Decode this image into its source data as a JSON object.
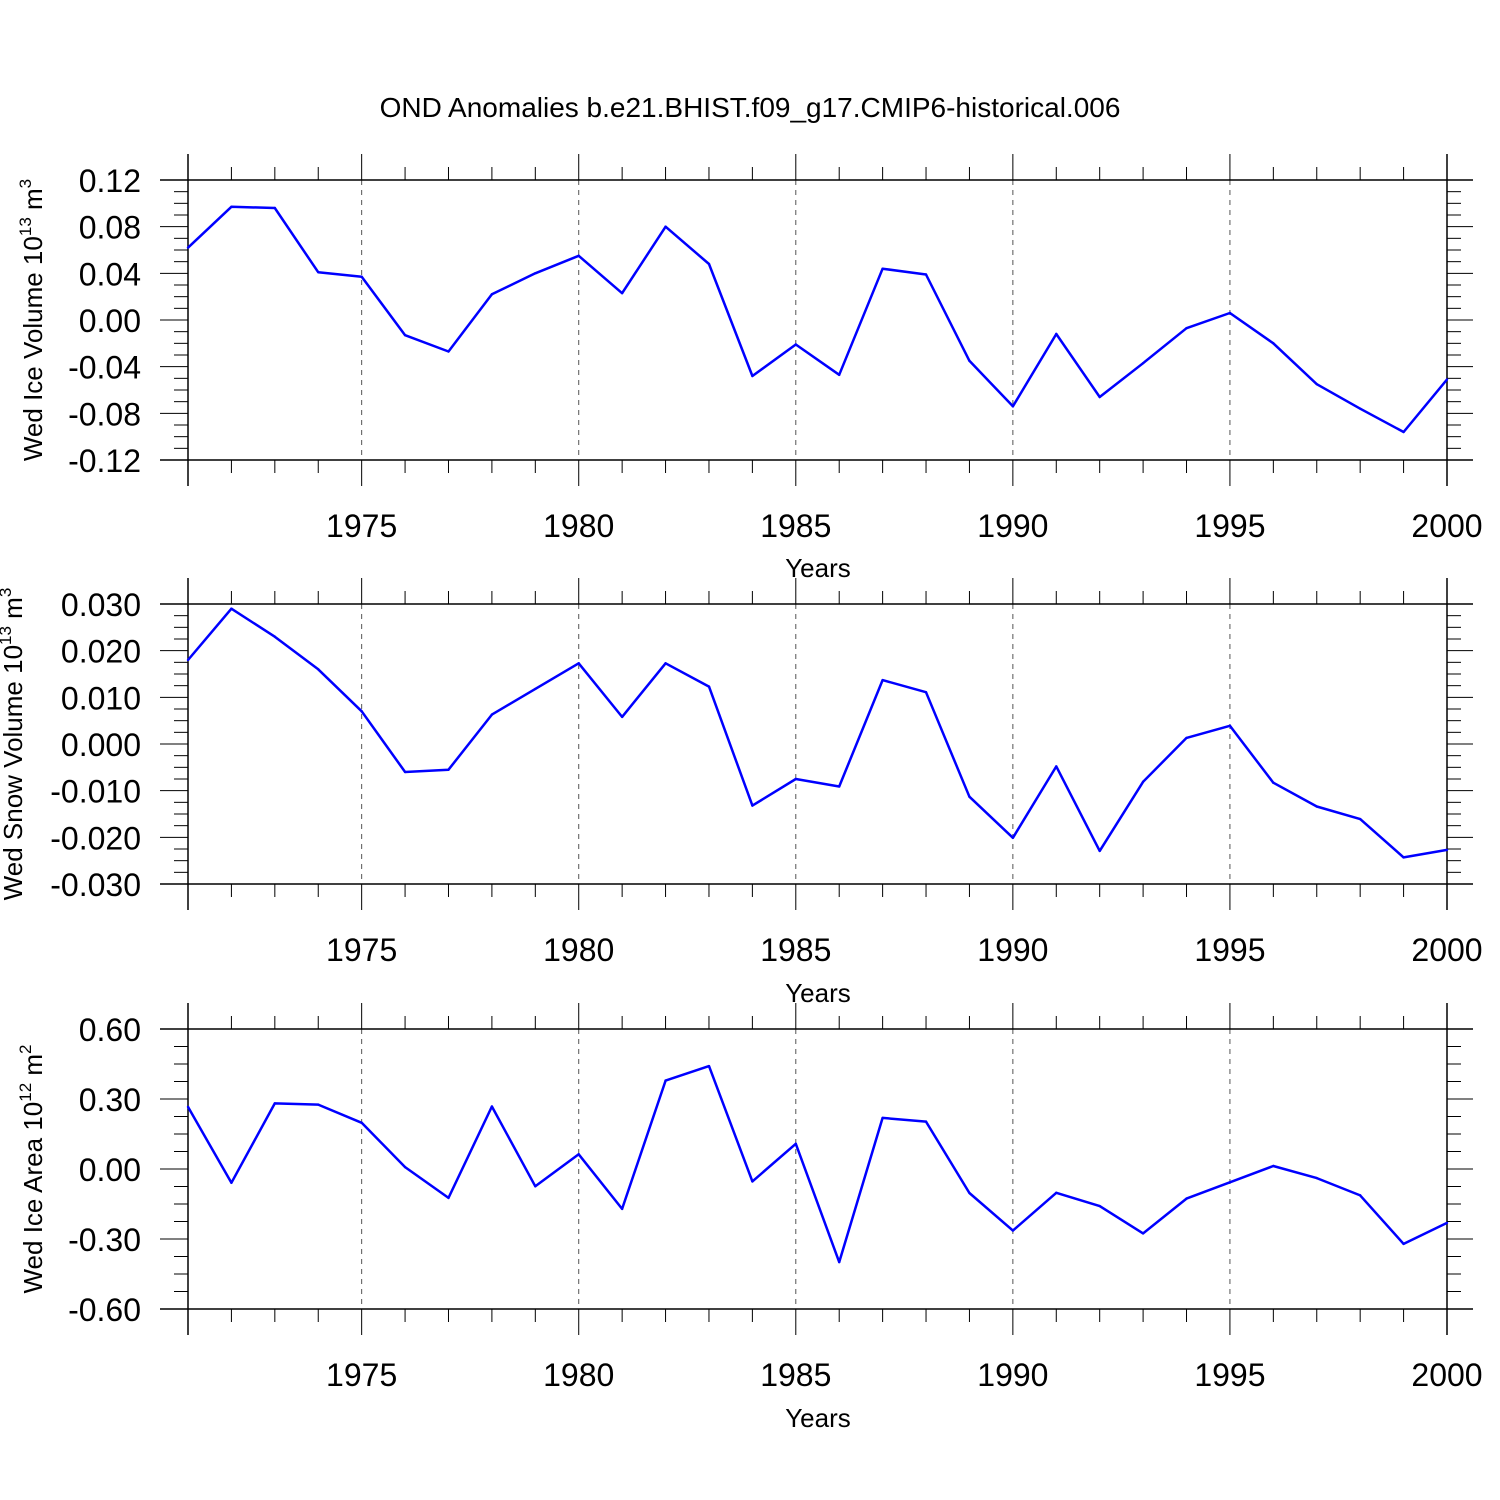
{
  "title": "OND Anomalies b.e21.BHIST.f09_g17.CMIP6-historical.006",
  "colors": {
    "line": "#0000ff",
    "axis": "#000000",
    "grid": "#555555",
    "background": "#ffffff"
  },
  "chart_data": [
    {
      "type": "line",
      "ylabel_main": "Wed Ice Volume 10",
      "ylabel_exp": "13",
      "ylabel_unit": " m",
      "ylabel_unit_exp": "3",
      "xlabel": "Years",
      "xlim": [
        1971,
        2000
      ],
      "ylim": [
        -0.12,
        0.12
      ],
      "yticks": [
        0.12,
        0.08,
        0.04,
        0.0,
        -0.04,
        -0.08,
        -0.12
      ],
      "ytick_labels": [
        "0.12",
        "0.08",
        "0.04",
        "0.00",
        "-0.04",
        "-0.08",
        "-0.12"
      ],
      "xticks": [
        1975,
        1980,
        1985,
        1990,
        1995,
        2000
      ],
      "xtick_labels": [
        "1975",
        "1980",
        "1985",
        "1990",
        "1995",
        "2000"
      ],
      "grid": "vertical dashed at major x ticks",
      "series": [
        {
          "x": [
            1971,
            1972,
            1973,
            1974,
            1975,
            1976,
            1977,
            1978,
            1979,
            1980,
            1981,
            1982,
            1983,
            1984,
            1985,
            1986,
            1987,
            1988,
            1989,
            1990,
            1991,
            1992,
            1993,
            1994,
            1995,
            1996,
            1997,
            1998,
            1999,
            2000
          ],
          "values": [
            0.062,
            0.097,
            0.096,
            0.041,
            0.037,
            -0.013,
            -0.027,
            0.022,
            0.04,
            0.055,
            0.023,
            0.08,
            0.048,
            -0.048,
            -0.021,
            -0.047,
            0.044,
            0.039,
            -0.035,
            -0.074,
            -0.012,
            -0.066,
            -0.037,
            -0.007,
            0.006,
            -0.02,
            -0.055,
            -0.076,
            -0.096,
            -0.051
          ]
        }
      ]
    },
    {
      "type": "line",
      "ylabel_main": "Wed Snow Volume 10",
      "ylabel_exp": "13",
      "ylabel_unit": " m",
      "ylabel_unit_exp": "3",
      "xlabel": "Years",
      "xlim": [
        1971,
        2000
      ],
      "ylim": [
        -0.03,
        0.03
      ],
      "yticks": [
        0.03,
        0.02,
        0.01,
        0.0,
        -0.01,
        -0.02,
        -0.03
      ],
      "ytick_labels": [
        "0.030",
        "0.020",
        "0.010",
        "0.000",
        "-0.010",
        "-0.020",
        "-0.030"
      ],
      "xticks": [
        1975,
        1980,
        1985,
        1990,
        1995,
        2000
      ],
      "xtick_labels": [
        "1975",
        "1980",
        "1985",
        "1990",
        "1995",
        "2000"
      ],
      "grid": "vertical dashed at major x ticks",
      "series": [
        {
          "x": [
            1971,
            1972,
            1973,
            1974,
            1975,
            1976,
            1977,
            1978,
            1979,
            1980,
            1981,
            1982,
            1983,
            1984,
            1985,
            1986,
            1987,
            1988,
            1989,
            1990,
            1991,
            1992,
            1993,
            1994,
            1995,
            1996,
            1997,
            1998,
            1999,
            2000
          ],
          "values": [
            0.018,
            0.029,
            0.023,
            0.016,
            0.007,
            -0.006,
            -0.0055,
            0.0063,
            0.0118,
            0.0173,
            0.0058,
            0.0173,
            0.0123,
            -0.0132,
            -0.0075,
            -0.0091,
            0.0137,
            0.0111,
            -0.0113,
            -0.0201,
            -0.0048,
            -0.0229,
            -0.0081,
            0.0013,
            0.0039,
            -0.0083,
            -0.0134,
            -0.0161,
            -0.0243,
            -0.0227
          ]
        }
      ]
    },
    {
      "type": "line",
      "ylabel_main": "Wed Ice Area 10",
      "ylabel_exp": "12",
      "ylabel_unit": " m",
      "ylabel_unit_exp": "2",
      "xlabel": "Years",
      "xlim": [
        1971,
        2000
      ],
      "ylim": [
        -0.6,
        0.6
      ],
      "yticks": [
        0.6,
        0.3,
        0.0,
        -0.3,
        -0.6
      ],
      "ytick_labels": [
        "0.60",
        "0.30",
        "0.00",
        "-0.30",
        "-0.60"
      ],
      "xticks": [
        1975,
        1980,
        1985,
        1990,
        1995,
        2000
      ],
      "xtick_labels": [
        "1975",
        "1980",
        "1985",
        "1990",
        "1995",
        "2000"
      ],
      "grid": "vertical dashed at major x ticks",
      "series": [
        {
          "x": [
            1971,
            1972,
            1973,
            1974,
            1975,
            1976,
            1977,
            1978,
            1979,
            1980,
            1981,
            1982,
            1983,
            1984,
            1985,
            1986,
            1987,
            1988,
            1989,
            1990,
            1991,
            1992,
            1993,
            1994,
            1995,
            1996,
            1997,
            1998,
            1999,
            2000
          ],
          "values": [
            0.266,
            -0.059,
            0.281,
            0.276,
            0.198,
            0.008,
            -0.124,
            0.268,
            -0.074,
            0.063,
            -0.171,
            0.379,
            0.441,
            -0.053,
            0.108,
            -0.399,
            0.219,
            0.203,
            -0.103,
            -0.264,
            -0.102,
            -0.159,
            -0.276,
            -0.127,
            -0.057,
            0.013,
            -0.039,
            -0.113,
            -0.321,
            -0.231
          ]
        }
      ]
    }
  ]
}
